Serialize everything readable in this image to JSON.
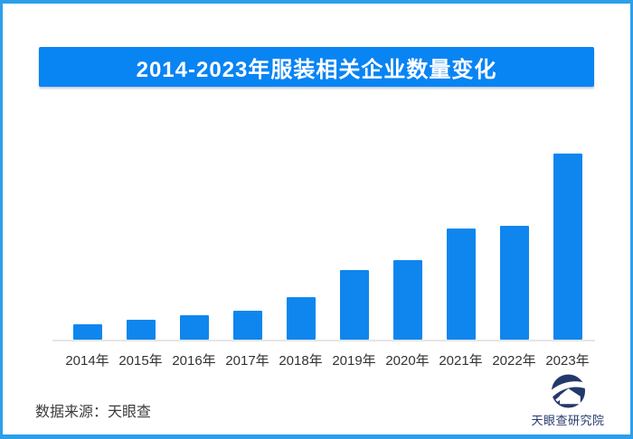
{
  "page": {
    "border_color": "#2d9fe9",
    "background_color": "#ffffff"
  },
  "banner": {
    "title": "2014-2023年服装相关企业数量变化",
    "bg_color": "#0984f3",
    "text_color": "#ffffff"
  },
  "chart_data": {
    "type": "bar",
    "title": "2014-2023年服装相关企业数量变化",
    "categories": [
      "2014年",
      "2015年",
      "2016年",
      "2017年",
      "2018年",
      "2019年",
      "2020年",
      "2021年",
      "2022年",
      "2023年"
    ],
    "values": [
      8.5,
      10.5,
      13.0,
      15.6,
      22.9,
      37.4,
      42.6,
      59.9,
      61.4,
      100
    ],
    "value_note": "bars carry no printed numbers; values estimated from bar heights, normalized to 2023 = 100",
    "xlabel": "",
    "ylabel": "",
    "ylim": [
      0,
      100
    ],
    "grid": false,
    "legend": false,
    "bar_color": "#0e86ee",
    "axis_line_color": "#e5e5e5",
    "tick_label_color": "#333333"
  },
  "footer": {
    "source_label": "数据来源：天眼查",
    "logo_text": "天眼查研究院",
    "logo_color": "#24396b"
  }
}
